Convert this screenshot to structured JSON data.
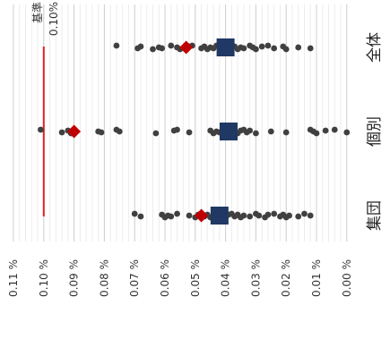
{
  "chart_data": {
    "type": "scatter",
    "orientation": "rotated-90-clockwise",
    "value_axis": {
      "min": 0,
      "max": 0.11,
      "major_step": 0.01,
      "minor_step": 0.002,
      "tick_labels": [
        "0.11 %",
        "0.10 %",
        "0.09 %",
        "0.08 %",
        "0.07 %",
        "0.06 %",
        "0.05 %",
        "0.04 %",
        "0.03 %",
        "0.02 %",
        "0.01 %",
        "0.00 %"
      ]
    },
    "grid": true,
    "reference_line": {
      "label": "基準",
      "value_label": "0.10%",
      "value": 0.1,
      "color": "#e02020"
    },
    "categories": [
      {
        "label": "全体",
        "points": [
          0.076,
          0.069,
          0.068,
          0.064,
          0.062,
          0.061,
          0.058,
          0.056,
          0.055,
          0.052,
          0.051,
          0.048,
          0.047,
          0.046,
          0.045,
          0.044,
          0.043,
          0.042,
          0.041,
          0.04,
          0.039,
          0.038,
          0.037,
          0.036,
          0.035,
          0.034,
          0.032,
          0.031,
          0.03,
          0.028,
          0.026,
          0.024,
          0.021,
          0.02,
          0.016,
          0.012
        ],
        "diamond": 0.053,
        "square": 0.04
      },
      {
        "label": "個別",
        "points": [
          0.101,
          0.094,
          0.092,
          0.091,
          0.082,
          0.081,
          0.076,
          0.075,
          0.063,
          0.057,
          0.056,
          0.052,
          0.045,
          0.044,
          0.043,
          0.042,
          0.04,
          0.038,
          0.036,
          0.035,
          0.034,
          0.033,
          0.032,
          0.03,
          0.025,
          0.02,
          0.012,
          0.011,
          0.01,
          0.007,
          0.004,
          0.0
        ],
        "diamond": 0.09,
        "square": 0.039
      },
      {
        "label": "集団",
        "points": [
          0.07,
          0.068,
          0.061,
          0.06,
          0.059,
          0.058,
          0.056,
          0.052,
          0.05,
          0.049,
          0.048,
          0.047,
          0.046,
          0.045,
          0.044,
          0.043,
          0.042,
          0.041,
          0.04,
          0.039,
          0.038,
          0.037,
          0.036,
          0.035,
          0.034,
          0.032,
          0.03,
          0.029,
          0.027,
          0.026,
          0.024,
          0.022,
          0.021,
          0.02,
          0.019,
          0.016,
          0.014,
          0.012
        ],
        "diamond": 0.048,
        "square": 0.042
      }
    ],
    "colors": {
      "points": "#404040",
      "diamond": "#c00000",
      "square": "#1f3864",
      "grid_major": "#d0d0d0",
      "grid_minor": "#ececec"
    }
  }
}
